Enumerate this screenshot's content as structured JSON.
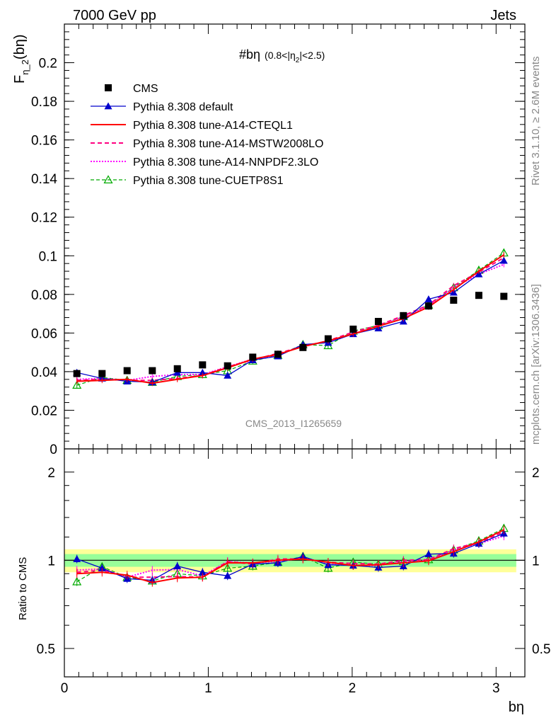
{
  "header": {
    "left": "7000 GeV pp",
    "right": "Jets"
  },
  "side": {
    "rivet": "Rivet 3.1.10, ≥ 2.6M events",
    "mcplots": "mcplots.cern.ch [arXiv:1306.3436]"
  },
  "analysis_id": "CMS_2013_I1265659",
  "colors": {
    "cms": "#000000",
    "default": "#0000cc",
    "cteql1": "#ff0000",
    "mstw": "#ff0080",
    "nnpdf": "#ff00ff",
    "cuetp8s1": "#00aa00",
    "band_inner": "#99ff99",
    "band_outer": "#ffff99"
  },
  "chart_data": [
    {
      "type": "line",
      "title": "#bη",
      "title_sub": "(0.8<|η",
      "title_sub_idx": "2",
      "title_sub_end": "|<2.5)",
      "ylabel": "F",
      "ylabel_sub": "η_2",
      "ylabel_end": "(bη)",
      "xlim": [
        0,
        3.2
      ],
      "ylim": [
        0,
        0.22
      ],
      "yticks": [
        "0",
        "0.02",
        "0.04",
        "0.06",
        "0.08",
        "0.1",
        "0.12",
        "0.14",
        "0.16",
        "0.18",
        "0.2"
      ],
      "ytick_values": [
        0,
        0.02,
        0.04,
        0.06,
        0.08,
        0.1,
        0.12,
        0.14,
        0.16,
        0.18,
        0.2
      ],
      "legend_position": "top-left",
      "x": [
        0.087,
        0.262,
        0.436,
        0.611,
        0.785,
        0.96,
        1.134,
        1.309,
        1.484,
        1.658,
        1.833,
        2.007,
        2.182,
        2.356,
        2.531,
        2.705,
        2.88,
        3.054
      ],
      "series": [
        {
          "key": "cms",
          "name": "CMS",
          "marker": "square",
          "style": "none",
          "values": [
            0.039,
            0.039,
            0.0405,
            0.0405,
            0.0415,
            0.0435,
            0.043,
            0.0475,
            0.049,
            0.0525,
            0.057,
            0.062,
            0.066,
            0.069,
            0.074,
            0.077,
            0.0795,
            0.079
          ]
        },
        {
          "key": "default",
          "name": "Pythia 8.308 default",
          "marker": "triangle",
          "style": "solid",
          "values": [
            0.0395,
            0.0365,
            0.035,
            0.0345,
            0.0395,
            0.0395,
            0.038,
            0.046,
            0.048,
            0.054,
            0.055,
            0.0595,
            0.0625,
            0.066,
            0.0775,
            0.081,
            0.0905,
            0.0975
          ]
        },
        {
          "key": "cteql1",
          "name": "Pythia 8.308 tune-A14-CTEQL1",
          "marker": "none",
          "style": "solid",
          "values": [
            0.035,
            0.0355,
            0.036,
            0.034,
            0.036,
            0.038,
            0.042,
            0.0465,
            0.049,
            0.053,
            0.056,
            0.0595,
            0.0635,
            0.0675,
            0.0735,
            0.0825,
            0.092,
            0.1005
          ]
        },
        {
          "key": "mstw",
          "name": "Pythia 8.308 tune-A14-MSTW2008LO",
          "marker": "none",
          "style": "dashed",
          "values": [
            0.0355,
            0.036,
            0.0355,
            0.0355,
            0.0365,
            0.038,
            0.0425,
            0.046,
            0.0495,
            0.053,
            0.056,
            0.0605,
            0.064,
            0.069,
            0.0745,
            0.0845,
            0.0915,
            0.099
          ]
        },
        {
          "key": "nnpdf",
          "name": "Pythia 8.308 tune-A14-NNPDF2.3LO",
          "marker": "none",
          "style": "dotted",
          "values": [
            0.036,
            0.0365,
            0.0355,
            0.0375,
            0.0385,
            0.0385,
            0.0425,
            0.0465,
            0.0485,
            0.0535,
            0.0555,
            0.0595,
            0.0635,
            0.0685,
            0.074,
            0.0835,
            0.0905,
            0.0955
          ]
        },
        {
          "key": "cuetp8s1",
          "name": "Pythia 8.308 tune-CUETP8S1",
          "marker": "triangle-open",
          "style": "dashed",
          "values": [
            0.033,
            0.037,
            0.0355,
            0.0345,
            0.0375,
            0.0385,
            0.0405,
            0.0455,
            0.0485,
            0.054,
            0.0535,
            0.061,
            0.064,
            0.0685,
            0.0745,
            0.0835,
            0.0925,
            0.1015
          ]
        }
      ]
    },
    {
      "type": "line",
      "ylabel": "Ratio to CMS",
      "xlabel": "bη",
      "xlim": [
        0,
        3.2
      ],
      "ylim": [
        0.4,
        2.4
      ],
      "log_scale": true,
      "yticks": [
        "0.5",
        "1",
        "2"
      ],
      "ytick_values": [
        0.5,
        1,
        2
      ],
      "xticks": [
        "0",
        "1",
        "2",
        "3"
      ],
      "xtick_values": [
        0,
        1,
        2,
        3
      ],
      "band_inner_halfwidth": 0.05,
      "band_outer_halfwidth": 0.09,
      "x": [
        0.087,
        0.262,
        0.436,
        0.611,
        0.785,
        0.96,
        1.134,
        1.309,
        1.484,
        1.658,
        1.833,
        2.007,
        2.182,
        2.356,
        2.531,
        2.705,
        2.88,
        3.054
      ],
      "series": [
        {
          "key": "default",
          "name": "Pythia 8.308 default",
          "values": [
            1.01,
            0.94,
            0.865,
            0.855,
            0.955,
            0.91,
            0.885,
            0.97,
            0.98,
            1.03,
            0.965,
            0.96,
            0.945,
            0.955,
            1.05,
            1.055,
            1.14,
            1.235
          ]
        },
        {
          "key": "cteql1",
          "name": "Pythia 8.308 tune-A14-CTEQL1",
          "values": [
            0.9,
            0.91,
            0.89,
            0.84,
            0.87,
            0.875,
            0.98,
            0.98,
            1.0,
            1.01,
            0.985,
            0.96,
            0.965,
            0.98,
            0.995,
            1.07,
            1.155,
            1.27
          ]
        },
        {
          "key": "mstw",
          "name": "Pythia 8.308 tune-A14-MSTW2008LO",
          "values": [
            0.91,
            0.925,
            0.875,
            0.875,
            0.88,
            0.875,
            0.99,
            0.97,
            1.01,
            1.01,
            0.985,
            0.975,
            0.97,
            1.0,
            1.005,
            1.095,
            1.15,
            1.25
          ]
        },
        {
          "key": "nnpdf",
          "name": "Pythia 8.308 tune-A14-NNPDF2.3LO",
          "values": [
            0.925,
            0.935,
            0.875,
            0.925,
            0.93,
            0.885,
            0.99,
            0.98,
            0.99,
            1.02,
            0.975,
            0.96,
            0.96,
            0.99,
            1.0,
            1.085,
            1.14,
            1.21
          ]
        },
        {
          "key": "cuetp8s1",
          "name": "Pythia 8.308 tune-CUETP8S1",
          "values": [
            0.845,
            0.95,
            0.875,
            0.85,
            0.9,
            0.885,
            0.94,
            0.955,
            0.985,
            1.03,
            0.94,
            0.985,
            0.97,
            0.99,
            1.005,
            1.085,
            1.165,
            1.285
          ]
        }
      ]
    }
  ]
}
